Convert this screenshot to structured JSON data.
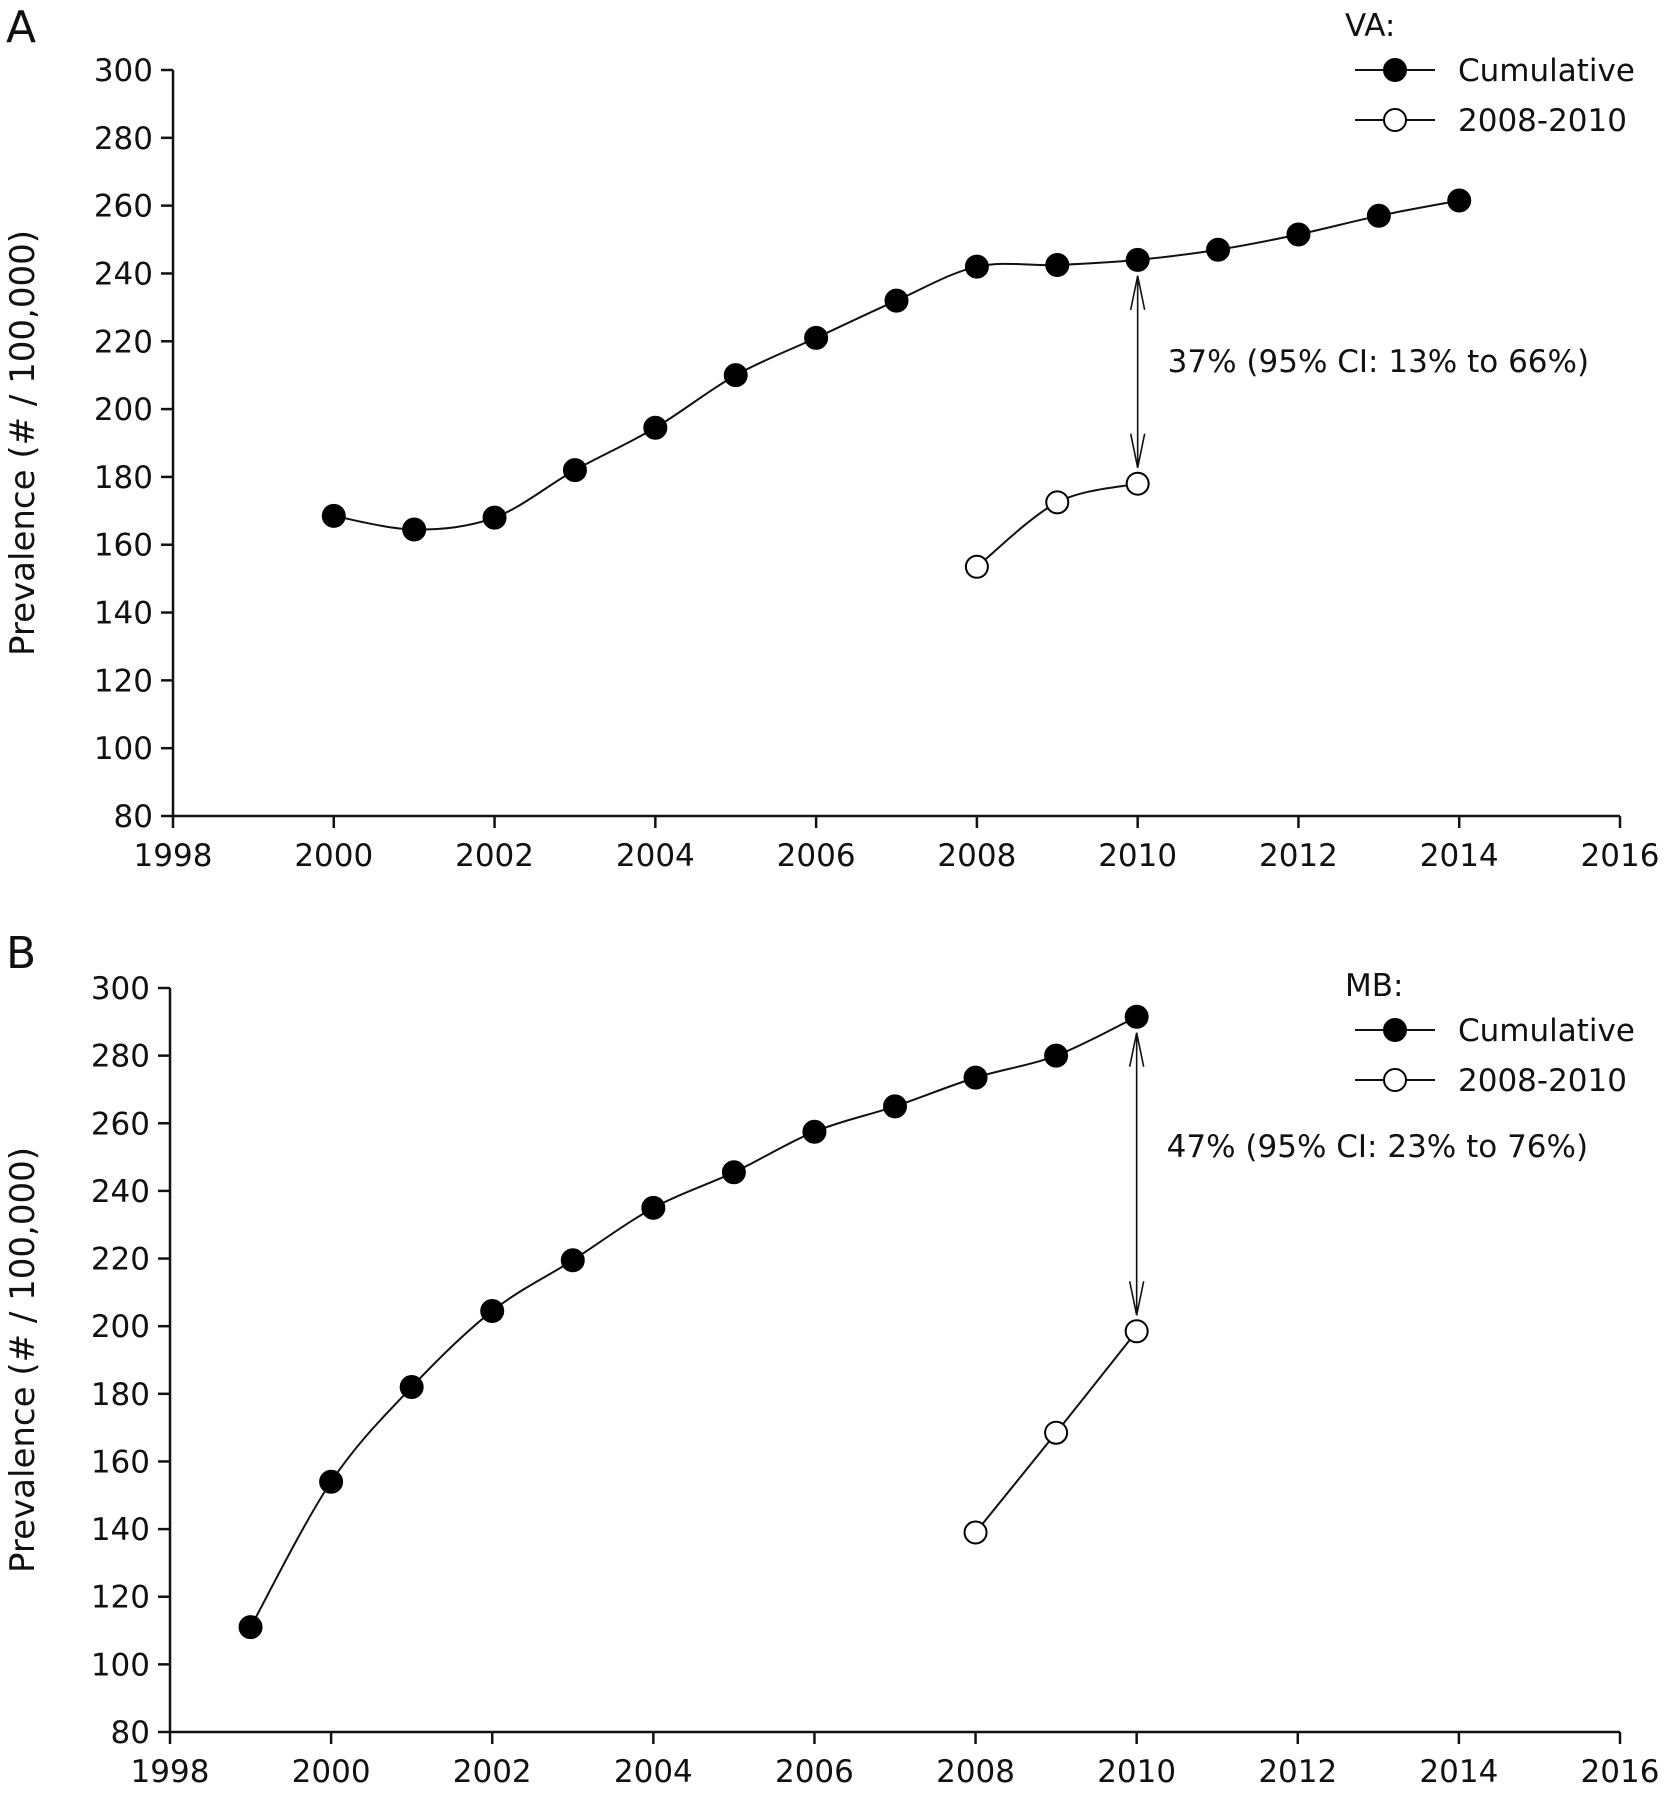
{
  "chart_data": [
    {
      "panel_label": "A",
      "type": "line",
      "xlabel": "",
      "ylabel": "Prevalence (# / 100,000)",
      "xlim": [
        1998,
        2016
      ],
      "ylim": [
        80,
        300
      ],
      "xticks": [
        1998,
        2000,
        2002,
        2004,
        2006,
        2008,
        2010,
        2012,
        2014,
        2016
      ],
      "yticks": [
        80,
        100,
        120,
        140,
        160,
        180,
        200,
        220,
        240,
        260,
        280,
        300
      ],
      "legend_title": "VA:",
      "legend_position": "top-right",
      "series": [
        {
          "name": "Cumulative",
          "marker": "filled-circle",
          "x": [
            2000,
            2001,
            2002,
            2003,
            2004,
            2005,
            2006,
            2007,
            2008,
            2009,
            2010,
            2011,
            2012,
            2013,
            2014
          ],
          "y": [
            168.5,
            164.5,
            168,
            182,
            194.5,
            210,
            221,
            232,
            242,
            242.5,
            244,
            247,
            251.5,
            257,
            261.5
          ]
        },
        {
          "name": "2008-2010",
          "marker": "open-circle",
          "x": [
            2008,
            2009,
            2010
          ],
          "y": [
            153.5,
            172.5,
            178
          ]
        }
      ],
      "annotation": {
        "text": "37% (95% CI: 13% to 66%)",
        "arrow_x": 2010,
        "arrow_from": 244,
        "arrow_to": 178
      }
    },
    {
      "panel_label": "B",
      "type": "line",
      "xlabel": "",
      "ylabel": "Prevalence (# / 100,000)",
      "xlim": [
        1998,
        2016
      ],
      "ylim": [
        80,
        300
      ],
      "xticks": [
        1998,
        2000,
        2002,
        2004,
        2006,
        2008,
        2010,
        2012,
        2014,
        2016
      ],
      "yticks": [
        80,
        100,
        120,
        140,
        160,
        180,
        200,
        220,
        240,
        260,
        280,
        300
      ],
      "legend_title": "MB:",
      "legend_position": "top-right",
      "series": [
        {
          "name": "Cumulative",
          "marker": "filled-circle",
          "x": [
            1999,
            2000,
            2001,
            2002,
            2003,
            2004,
            2005,
            2006,
            2007,
            2008,
            2009,
            2010
          ],
          "y": [
            111,
            154,
            182,
            204.5,
            219.5,
            235,
            245.5,
            257.5,
            265,
            273.5,
            280,
            291.5
          ]
        },
        {
          "name": "2008-2010",
          "marker": "open-circle",
          "x": [
            2008,
            2009,
            2010
          ],
          "y": [
            139,
            168.5,
            198.5
          ]
        }
      ],
      "annotation": {
        "text": "47% (95% CI: 23% to 76%)",
        "arrow_x": 2010,
        "arrow_from": 291.5,
        "arrow_to": 198.5
      }
    }
  ]
}
